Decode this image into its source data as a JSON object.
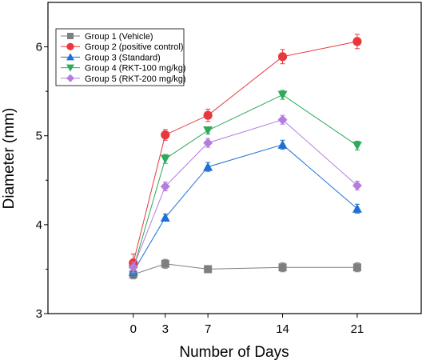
{
  "chart_data": {
    "type": "line",
    "xlabel": "Number of Days",
    "ylabel": "Diameter (mm)",
    "xlim": [
      -8,
      27
    ],
    "ylim": [
      3,
      6.5
    ],
    "x": [
      0,
      3,
      7,
      14,
      21
    ],
    "xticks": [
      "0",
      "3",
      "7",
      "14",
      "21"
    ],
    "yticks": [
      "3",
      "4",
      "5",
      "6"
    ],
    "legend_position": "top-left",
    "series": [
      {
        "name": "Group 1 (Vehicle)",
        "color": "#7f7f7f",
        "marker": "square",
        "values": [
          3.44,
          3.56,
          3.5,
          3.52,
          3.52
        ],
        "error": [
          0.05,
          0.05,
          0.04,
          0.05,
          0.05
        ]
      },
      {
        "name": "Group 2 (positive control)",
        "color": "#e8383d",
        "marker": "circle",
        "values": [
          3.57,
          5.01,
          5.23,
          5.89,
          6.06
        ],
        "error": [
          0.1,
          0.06,
          0.07,
          0.08,
          0.08
        ]
      },
      {
        "name": "Group 3 (Standard)",
        "color": "#1f6fd6",
        "marker": "triangle-up",
        "values": [
          3.47,
          4.08,
          4.65,
          4.9,
          4.18
        ],
        "error": [
          0.06,
          0.04,
          0.05,
          0.05,
          0.05
        ]
      },
      {
        "name": "Group 4 (RKT-100 mg/kg)",
        "color": "#2eab5a",
        "marker": "triangle-down",
        "values": [
          3.5,
          4.74,
          5.06,
          5.46,
          4.89
        ],
        "error": [
          0.06,
          0.05,
          0.04,
          0.05,
          0.05
        ]
      },
      {
        "name": "Group 5 (RKT-200 mg/kg)",
        "color": "#b57ce0",
        "marker": "diamond",
        "values": [
          3.52,
          4.43,
          4.92,
          5.18,
          4.44
        ],
        "error": [
          0.06,
          0.05,
          0.05,
          0.05,
          0.05
        ]
      }
    ]
  }
}
